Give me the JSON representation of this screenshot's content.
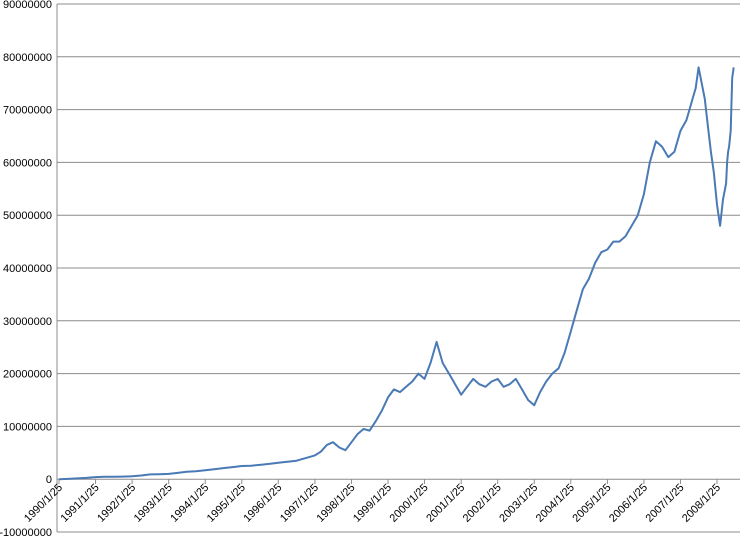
{
  "chart_data": {
    "type": "line",
    "title": "",
    "xlabel": "",
    "ylabel": "",
    "ylim": [
      -10000000,
      90000000
    ],
    "grid": true,
    "legend": "none",
    "y_ticks": [
      "90000000",
      "80000000",
      "70000000",
      "60000000",
      "50000000",
      "40000000",
      "30000000",
      "20000000",
      "10000000",
      "0",
      "-10000000"
    ],
    "x_ticks": [
      "1990/1/25",
      "1991/1/25",
      "1992/1/25",
      "1993/1/25",
      "1994/1/25",
      "1995/1/25",
      "1996/1/25",
      "1997/1/25",
      "1998/1/25",
      "1999/1/25",
      "2000/1/25",
      "2001/1/25",
      "2002/1/25",
      "2003/1/25",
      "2004/1/25",
      "2005/1/25",
      "2006/1/25",
      "2007/1/25",
      "2008/1/25"
    ],
    "series": [
      {
        "color": "#4a7ab5",
        "x": [
          "1990/1/25",
          "1990/4/25",
          "1990/7/25",
          "1990/10/25",
          "1991/1/25",
          "1991/4/25",
          "1991/7/25",
          "1991/10/25",
          "1992/1/25",
          "1992/4/25",
          "1992/7/25",
          "1992/10/25",
          "1993/1/25",
          "1993/4/25",
          "1993/7/25",
          "1993/10/25",
          "1994/1/25",
          "1994/4/25",
          "1994/7/25",
          "1994/10/25",
          "1995/1/25",
          "1995/4/25",
          "1995/7/25",
          "1995/10/25",
          "1996/1/25",
          "1996/4/25",
          "1996/7/25",
          "1996/10/25",
          "1997/1/25",
          "1997/3/25",
          "1997/5/25",
          "1997/7/25",
          "1997/9/25",
          "1997/11/25",
          "1998/1/25",
          "1998/3/25",
          "1998/5/25",
          "1998/7/25",
          "1998/9/25",
          "1998/11/25",
          "1999/1/25",
          "1999/3/25",
          "1999/5/25",
          "1999/7/25",
          "1999/9/25",
          "1999/11/25",
          "2000/1/25",
          "2000/3/25",
          "2000/5/25",
          "2000/7/25",
          "2000/9/25",
          "2000/11/25",
          "2001/1/25",
          "2001/3/25",
          "2001/5/25",
          "2001/7/25",
          "2001/9/25",
          "2001/11/25",
          "2002/1/25",
          "2002/3/25",
          "2002/5/25",
          "2002/7/25",
          "2002/9/25",
          "2002/11/25",
          "2003/1/25",
          "2003/3/25",
          "2003/5/25",
          "2003/7/25",
          "2003/9/25",
          "2003/11/25",
          "2004/1/25",
          "2004/3/25",
          "2004/5/25",
          "2004/7/25",
          "2004/9/25",
          "2004/11/25",
          "2005/1/25",
          "2005/3/25",
          "2005/5/25",
          "2005/7/25",
          "2005/9/25",
          "2005/11/25",
          "2006/1/25",
          "2006/3/25",
          "2006/5/25",
          "2006/7/25",
          "2006/9/25",
          "2006/11/25",
          "2007/1/25",
          "2007/3/25",
          "2007/4/25",
          "2007/5/25",
          "2007/6/25",
          "2007/7/25",
          "2007/8/25",
          "2007/9/25",
          "2007/10/25",
          "2007/11/25",
          "2007/12/25",
          "2008/1/25",
          "2008/2/25",
          "2008/3/25",
          "2008/4/25",
          "2008/5/5",
          "2008/5/15",
          "2008/5/25",
          "2008/6/10",
          "2008/6/25",
          "2008/7/10"
        ],
        "y": [
          0,
          50000,
          150000,
          250000,
          400000,
          450000,
          480000,
          500000,
          550000,
          700000,
          900000,
          950000,
          1000000,
          1200000,
          1400000,
          1500000,
          1700000,
          1900000,
          2100000,
          2300000,
          2500000,
          2550000,
          2700000,
          2900000,
          3100000,
          3300000,
          3500000,
          4000000,
          4500000,
          5200000,
          6500000,
          7000000,
          6000000,
          5500000,
          7000000,
          8500000,
          9500000,
          9200000,
          11000000,
          13000000,
          15500000,
          17000000,
          16500000,
          17500000,
          18500000,
          20000000,
          19000000,
          22000000,
          26000000,
          22000000,
          20000000,
          18000000,
          16000000,
          17500000,
          19000000,
          18000000,
          17500000,
          18500000,
          19000000,
          17500000,
          18000000,
          19000000,
          17000000,
          15000000,
          14000000,
          16500000,
          18500000,
          20000000,
          21000000,
          24000000,
          28000000,
          32000000,
          36000000,
          38000000,
          41000000,
          43000000,
          43500000,
          45000000,
          45000000,
          46000000,
          48000000,
          50000000,
          54000000,
          60000000,
          64000000,
          63000000,
          61000000,
          62000000,
          66000000,
          68000000,
          70000000,
          72000000,
          74000000,
          78000000,
          75000000,
          72000000,
          67000000,
          62000000,
          58000000,
          52000000,
          48000000,
          53000000,
          56000000,
          60000000,
          62000000,
          63000000,
          66000000,
          76000000,
          78000000
        ]
      }
    ]
  }
}
